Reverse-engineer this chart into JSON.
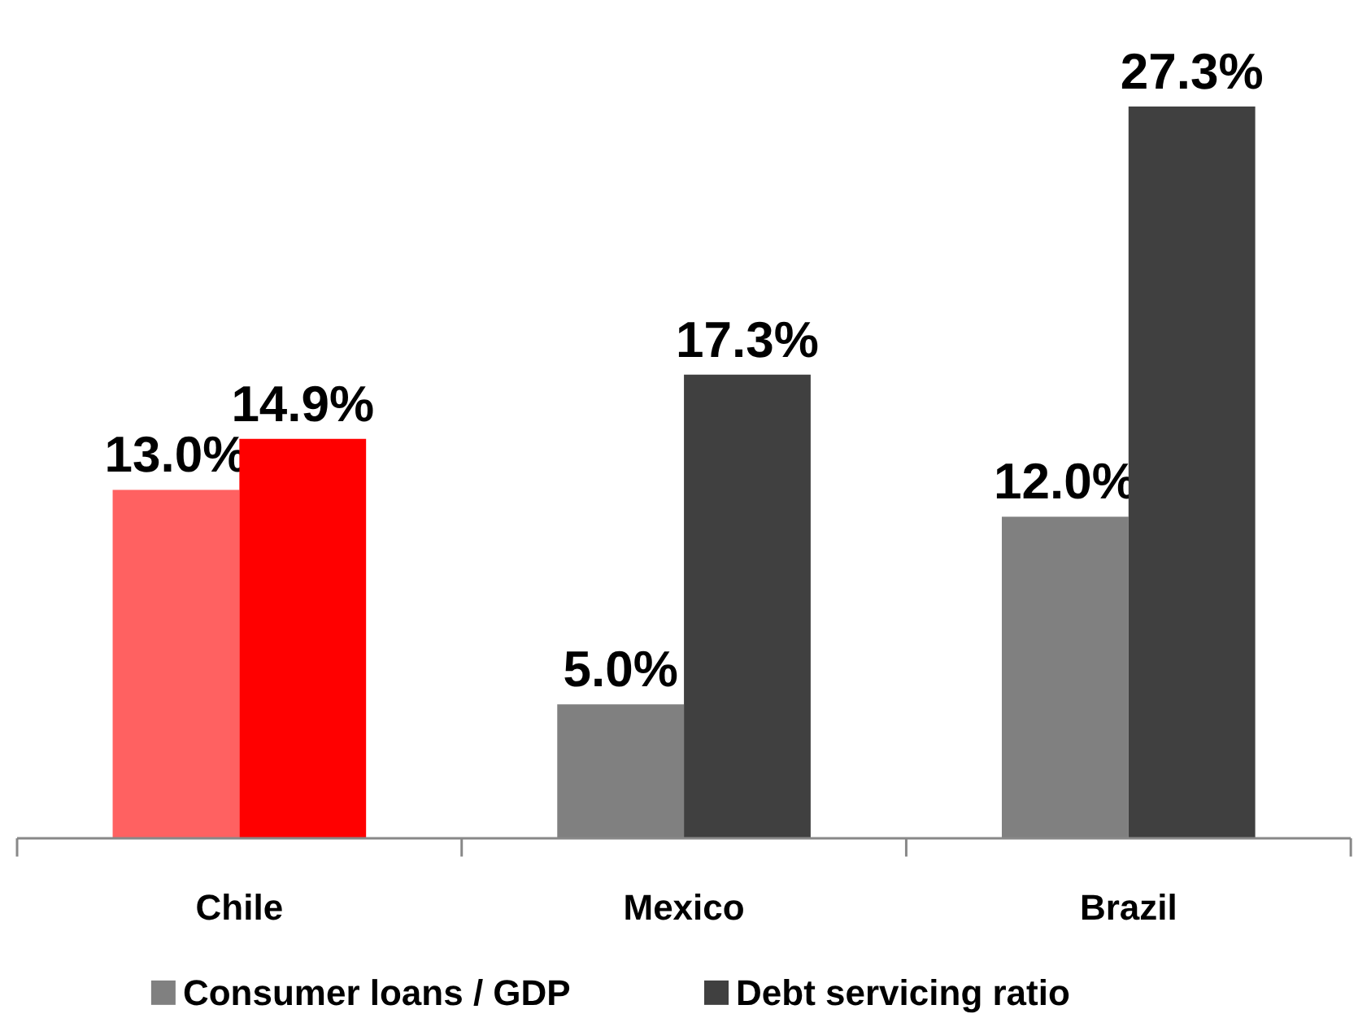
{
  "chart_data": {
    "type": "bar",
    "categories": [
      "Chile",
      "Mexico",
      "Brazil"
    ],
    "series": [
      {
        "name": "Consumer loans / GDP",
        "color": "#808080",
        "colors": [
          "#ff6161",
          "#808080",
          "#808080"
        ],
        "values": [
          13.0,
          5.0,
          12.0
        ],
        "value_labels": [
          "13.0%",
          "5.0%",
          "12.0%"
        ]
      },
      {
        "name": "Debt servicing ratio",
        "color": "#404040",
        "colors": [
          "#ff0000",
          "#404040",
          "#404040"
        ],
        "values": [
          14.9,
          17.3,
          27.3
        ],
        "value_labels": [
          "14.9%",
          "17.3%",
          "27.3%"
        ]
      }
    ],
    "legend": "bottom",
    "grid": false
  }
}
